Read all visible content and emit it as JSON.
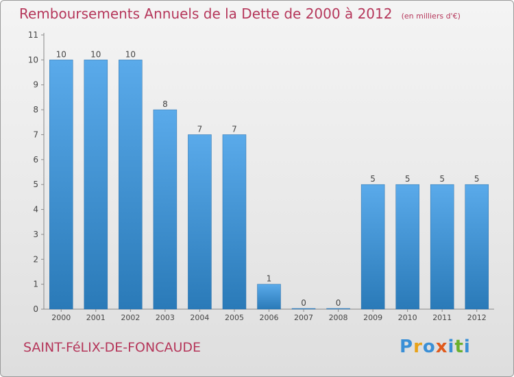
{
  "title": "Remboursements Annuels de la Dette de 2000 à 2012",
  "unit": "(en milliers d'€)",
  "commune": "SAINT-FéLIX-DE-FONCAUDE",
  "logo": {
    "letters": [
      {
        "char": "P",
        "color": "#3a8fd6"
      },
      {
        "char": "r",
        "color": "#e8a21a"
      },
      {
        "char": "o",
        "color": "#3a8fd6"
      },
      {
        "char": "x",
        "color": "#e05a1c"
      },
      {
        "char": "i",
        "color": "#3a8fd6"
      },
      {
        "char": "t",
        "color": "#6ab02d"
      },
      {
        "char": "i",
        "color": "#3a8fd6"
      }
    ]
  },
  "colors": {
    "bar_top": "#5aaaea",
    "bar_bottom": "#2a7ab8",
    "title": "#b5365a"
  },
  "chart_data": {
    "type": "bar",
    "title": "Remboursements Annuels de la Dette de 2000 à 2012",
    "subtitle": "(en milliers d'€)",
    "xlabel": "",
    "ylabel": "",
    "categories": [
      "2000",
      "2001",
      "2002",
      "2003",
      "2004",
      "2005",
      "2006",
      "2007",
      "2008",
      "2009",
      "2010",
      "2011",
      "2012"
    ],
    "values": [
      10,
      10,
      10,
      8,
      7,
      7,
      1,
      0,
      0,
      5,
      5,
      5,
      5
    ],
    "data_labels": [
      "10",
      "10",
      "10",
      "8",
      "7",
      "7",
      "1",
      "0",
      "0",
      "5",
      "5",
      "5",
      "5"
    ],
    "yticks": [
      "0",
      "1",
      "2",
      "3",
      "4",
      "5",
      "6",
      "7",
      "8",
      "9",
      "10",
      "11"
    ],
    "ylim": [
      0,
      11
    ],
    "grid": false,
    "legend": "none"
  }
}
